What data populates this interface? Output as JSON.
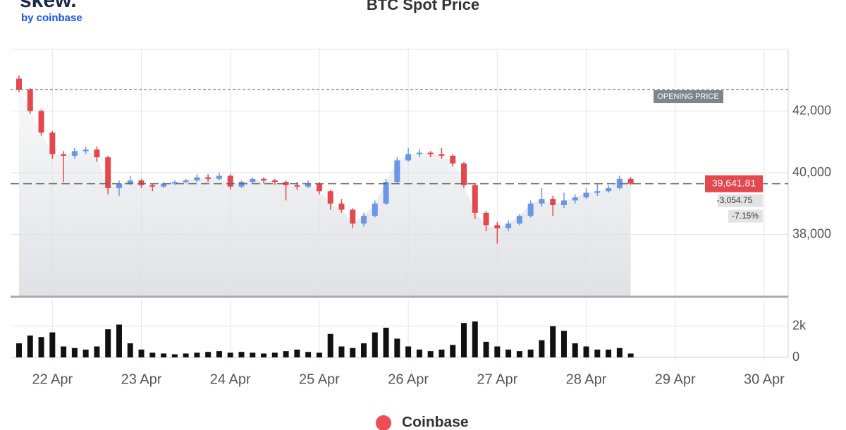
{
  "logo": {
    "name": "skew.",
    "sub": "by coinbase"
  },
  "chart_data": {
    "type": "candlestick",
    "title": "BTC Spot Price",
    "x": [
      21.625,
      21.75,
      21.875,
      22,
      22.125,
      22.25,
      22.375,
      22.5,
      22.625,
      22.75,
      22.875,
      23,
      23.125,
      23.25,
      23.375,
      23.5,
      23.625,
      23.75,
      23.875,
      24,
      24.125,
      24.25,
      24.375,
      24.5,
      24.625,
      24.75,
      24.875,
      25,
      25.125,
      25.25,
      25.375,
      25.5,
      25.625,
      25.75,
      25.875,
      26,
      26.125,
      26.25,
      26.375,
      26.5,
      26.625,
      26.75,
      26.875,
      27,
      27.125,
      27.25,
      27.375,
      27.5,
      27.625,
      27.75,
      27.875,
      28,
      28.125,
      28.25,
      28.375,
      28.5
    ],
    "series": [
      {
        "name": "Coinbase",
        "color": "#ef4b52",
        "up_color": "#6a96e8",
        "down_color": "#e5474f",
        "open": [
          43050,
          42700,
          42000,
          41300,
          40600,
          40550,
          40700,
          40750,
          40500,
          39500,
          39650,
          39750,
          39600,
          39550,
          39650,
          39700,
          39750,
          39850,
          39800,
          39900,
          39550,
          39700,
          39800,
          39750,
          39700,
          39600,
          39550,
          39650,
          39400,
          39000,
          38800,
          38350,
          38600,
          39000,
          39700,
          40400,
          40600,
          40650,
          40600,
          40550,
          40300,
          39600,
          38700,
          38300,
          38200,
          38350,
          38600,
          39000,
          39150,
          38950,
          39100,
          39200,
          39350,
          39400,
          39500,
          39800
        ],
        "high": [
          43150,
          42750,
          42050,
          41350,
          40700,
          40800,
          40850,
          40850,
          40550,
          39750,
          39900,
          39800,
          39650,
          39700,
          39750,
          39800,
          39950,
          39950,
          40000,
          39950,
          39750,
          39850,
          39850,
          39800,
          39750,
          39700,
          39750,
          39700,
          39450,
          39150,
          38850,
          38700,
          39100,
          39800,
          40500,
          40800,
          40750,
          40700,
          40800,
          40600,
          40350,
          39650,
          38750,
          38400,
          38450,
          38650,
          39100,
          39500,
          39250,
          39350,
          39300,
          39500,
          39650,
          39600,
          39900,
          39850
        ],
        "low": [
          42600,
          41900,
          41200,
          40450,
          39700,
          40450,
          40600,
          40350,
          39300,
          39250,
          39600,
          39500,
          39400,
          39500,
          39600,
          39650,
          39700,
          39700,
          39750,
          39450,
          39500,
          39650,
          39650,
          39600,
          39100,
          39450,
          39500,
          39300,
          38800,
          38700,
          38200,
          38250,
          38550,
          38950,
          39650,
          40350,
          40500,
          40500,
          40450,
          40200,
          39500,
          38500,
          38100,
          37700,
          38100,
          38300,
          38550,
          38900,
          38600,
          38850,
          39000,
          39150,
          39250,
          39350,
          39450,
          39600
        ],
        "close": [
          42700,
          42000,
          41300,
          40600,
          40550,
          40700,
          40750,
          40500,
          39500,
          39650,
          39750,
          39600,
          39550,
          39650,
          39700,
          39750,
          39850,
          39800,
          39900,
          39550,
          39700,
          39800,
          39750,
          39700,
          39600,
          39550,
          39650,
          39400,
          39000,
          38800,
          38350,
          38600,
          39000,
          39700,
          40400,
          40600,
          40650,
          40600,
          40550,
          40300,
          39600,
          38700,
          38300,
          38200,
          38350,
          38600,
          39000,
          39150,
          38950,
          39100,
          39200,
          39350,
          39400,
          39500,
          39800,
          39641.81
        ],
        "volume": [
          900,
          1400,
          1300,
          1600,
          700,
          600,
          500,
          700,
          1800,
          2100,
          900,
          500,
          300,
          250,
          200,
          250,
          300,
          350,
          400,
          300,
          350,
          300,
          250,
          300,
          400,
          500,
          350,
          300,
          1500,
          700,
          600,
          900,
          1600,
          1900,
          1200,
          700,
          500,
          400,
          500,
          800,
          2200,
          2300,
          1000,
          700,
          500,
          400,
          500,
          1100,
          2000,
          1700,
          900,
          700,
          500,
          500,
          600,
          250
        ]
      }
    ],
    "xlim": [
      21.53,
      30.27
    ],
    "xticks": [
      {
        "value": 22,
        "label": "22 Apr"
      },
      {
        "value": 23,
        "label": "23 Apr"
      },
      {
        "value": 24,
        "label": "24 Apr"
      },
      {
        "value": 25,
        "label": "25 Apr"
      },
      {
        "value": 26,
        "label": "26 Apr"
      },
      {
        "value": 27,
        "label": "27 Apr"
      },
      {
        "value": 28,
        "label": "28 Apr"
      },
      {
        "value": 29,
        "label": "29 Apr"
      },
      {
        "value": 30,
        "label": "30 Apr"
      }
    ],
    "ylim": [
      36000,
      44000
    ],
    "yticks": [
      {
        "value": 38000,
        "label": "38,000"
      },
      {
        "value": 40000,
        "label": "40,000"
      },
      {
        "value": 42000,
        "label": "42,000"
      }
    ],
    "volume_ylim": [
      0,
      3700
    ],
    "volume_yticks": [
      0,
      {
        "value": 2000,
        "label": "2k"
      }
    ],
    "opening_price": {
      "value": 42696.56,
      "label": "OPENING PRICE"
    },
    "last_price": {
      "value": 39641.81,
      "label": "39,641.81"
    },
    "change": "-3,054.75",
    "change_pct": "-7.15%"
  }
}
